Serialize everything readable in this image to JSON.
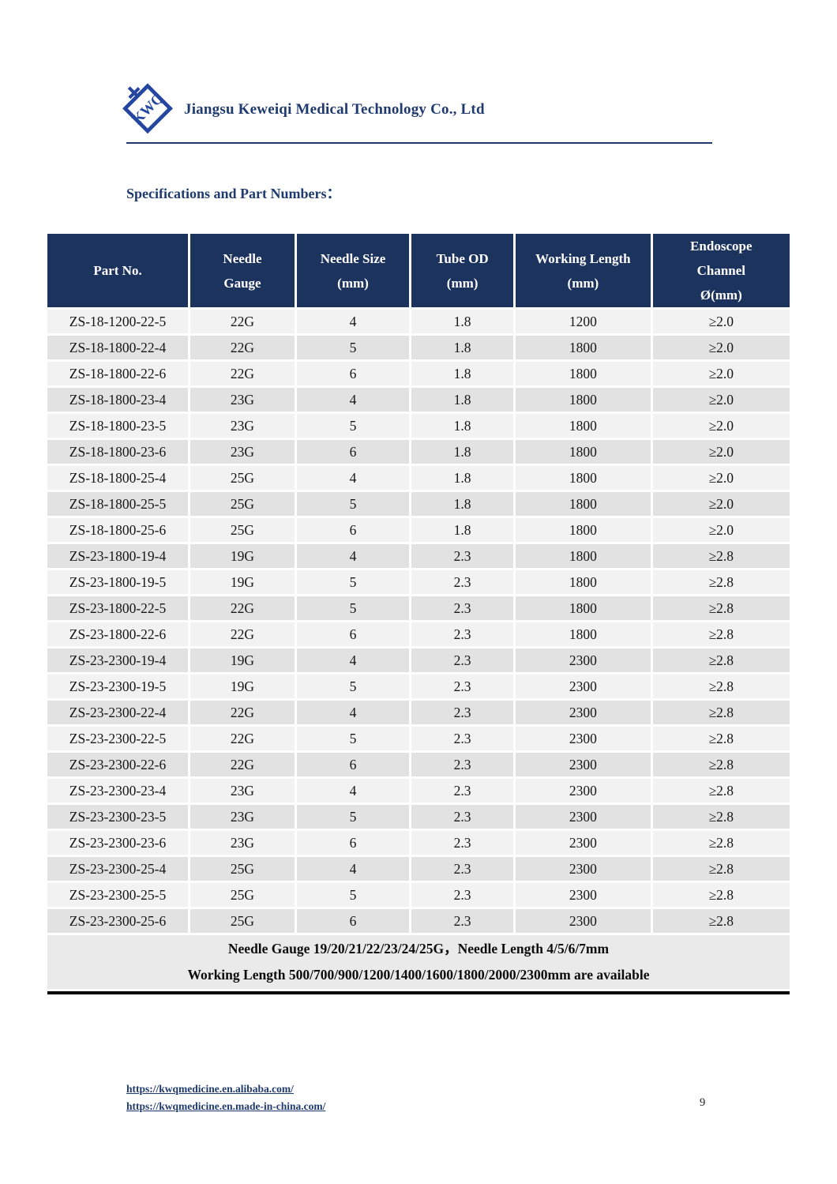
{
  "header": {
    "company": "Jiangsu Keweiqi Medical Technology Co., Ltd",
    "logo_text": "KWQ"
  },
  "section": {
    "title": "Specifications and Part Numbers："
  },
  "table": {
    "headers": [
      {
        "lines": [
          "Part No."
        ]
      },
      {
        "lines": [
          "Needle",
          "Gauge"
        ]
      },
      {
        "lines": [
          "Needle Size",
          "(mm)"
        ]
      },
      {
        "lines": [
          "Tube OD",
          "(mm)"
        ]
      },
      {
        "lines": [
          "Working Length",
          "(mm)"
        ]
      },
      {
        "lines": [
          "Endoscope",
          "Channel",
          "Ø(mm)"
        ]
      }
    ],
    "rows": [
      [
        "ZS-18-1200-22-5",
        "22G",
        "4",
        "1.8",
        "1200",
        "≥2.0"
      ],
      [
        "ZS-18-1800-22-4",
        "22G",
        "5",
        "1.8",
        "1800",
        "≥2.0"
      ],
      [
        "ZS-18-1800-22-6",
        "22G",
        "6",
        "1.8",
        "1800",
        "≥2.0"
      ],
      [
        "ZS-18-1800-23-4",
        "23G",
        "4",
        "1.8",
        "1800",
        "≥2.0"
      ],
      [
        "ZS-18-1800-23-5",
        "23G",
        "5",
        "1.8",
        "1800",
        "≥2.0"
      ],
      [
        "ZS-18-1800-23-6",
        "23G",
        "6",
        "1.8",
        "1800",
        "≥2.0"
      ],
      [
        "ZS-18-1800-25-4",
        "25G",
        "4",
        "1.8",
        "1800",
        "≥2.0"
      ],
      [
        "ZS-18-1800-25-5",
        "25G",
        "5",
        "1.8",
        "1800",
        "≥2.0"
      ],
      [
        "ZS-18-1800-25-6",
        "25G",
        "6",
        "1.8",
        "1800",
        "≥2.0"
      ],
      [
        "ZS-23-1800-19-4",
        "19G",
        "4",
        "2.3",
        "1800",
        "≥2.8"
      ],
      [
        "ZS-23-1800-19-5",
        "19G",
        "5",
        "2.3",
        "1800",
        "≥2.8"
      ],
      [
        "ZS-23-1800-22-5",
        "22G",
        "5",
        "2.3",
        "1800",
        "≥2.8"
      ],
      [
        "ZS-23-1800-22-6",
        "22G",
        "6",
        "2.3",
        "1800",
        "≥2.8"
      ],
      [
        "ZS-23-2300-19-4",
        "19G",
        "4",
        "2.3",
        "2300",
        "≥2.8"
      ],
      [
        "ZS-23-2300-19-5",
        "19G",
        "5",
        "2.3",
        "2300",
        "≥2.8"
      ],
      [
        "ZS-23-2300-22-4",
        "22G",
        "4",
        "2.3",
        "2300",
        "≥2.8"
      ],
      [
        "ZS-23-2300-22-5",
        "22G",
        "5",
        "2.3",
        "2300",
        "≥2.8"
      ],
      [
        "ZS-23-2300-22-6",
        "22G",
        "6",
        "2.3",
        "2300",
        "≥2.8"
      ],
      [
        "ZS-23-2300-23-4",
        "23G",
        "4",
        "2.3",
        "2300",
        "≥2.8"
      ],
      [
        "ZS-23-2300-23-5",
        "23G",
        "5",
        "2.3",
        "2300",
        "≥2.8"
      ],
      [
        "ZS-23-2300-23-6",
        "23G",
        "6",
        "2.3",
        "2300",
        "≥2.8"
      ],
      [
        "ZS-23-2300-25-4",
        "25G",
        "4",
        "2.3",
        "2300",
        "≥2.8"
      ],
      [
        "ZS-23-2300-25-5",
        "25G",
        "5",
        "2.3",
        "2300",
        "≥2.8"
      ],
      [
        "ZS-23-2300-25-6",
        "25G",
        "6",
        "2.3",
        "2300",
        "≥2.8"
      ]
    ],
    "footer_lines": [
      "Needle Gauge 19/20/21/22/23/24/25G，Needle Length 4/5/6/7mm",
      "Working Length 500/700/900/1200/1400/1600/1800/2000/2300mm are available"
    ]
  },
  "footer": {
    "links": [
      "https://kwqmedicine.en.alibaba.com/",
      "https://kwqmedicine.en.made-in-china.com/"
    ],
    "page_number": "9"
  },
  "colors": {
    "table_header_bg": "#1c335e",
    "navy_text": "#1f3a6e",
    "logo_blue": "#2446a0",
    "row_stripe_light": "#f2f2f2",
    "row_stripe_dark": "#e2e2e2",
    "note_band_bg": "#eaeaea"
  }
}
